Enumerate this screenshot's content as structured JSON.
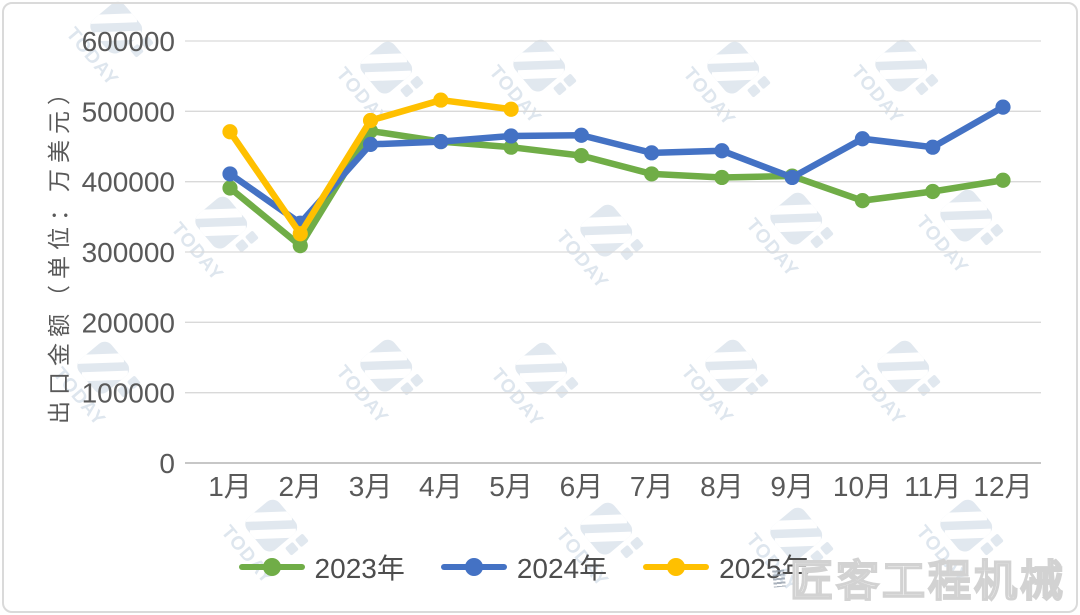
{
  "watermark": {
    "caps": "TODAY",
    "brand": "匠客工程机械"
  },
  "chart_data": {
    "type": "line",
    "title": "",
    "xlabel": "",
    "ylabel": "出口金额（单位：万美元）",
    "categories": [
      "1月",
      "2月",
      "3月",
      "4月",
      "5月",
      "6月",
      "7月",
      "8月",
      "9月",
      "10月",
      "11月",
      "12月"
    ],
    "y_ticks": [
      600000,
      500000,
      400000,
      300000,
      200000,
      100000,
      0
    ],
    "ylim": [
      0,
      600000
    ],
    "grid": "horizontal",
    "legend_position": "bottom",
    "series": [
      {
        "name": "2023年",
        "color": "#70AD47",
        "values": [
          391000,
          309000,
          472000,
          457000,
          449000,
          437000,
          411000,
          406000,
          408000,
          373000,
          386000,
          402000
        ]
      },
      {
        "name": "2024年",
        "color": "#4472C4",
        "values": [
          411000,
          341000,
          453000,
          457000,
          465000,
          466000,
          441000,
          444000,
          406000,
          461000,
          449000,
          506000
        ]
      },
      {
        "name": "2025年",
        "color": "#FFC000",
        "values": [
          471000,
          326000,
          487000,
          516000,
          503000
        ]
      }
    ]
  }
}
